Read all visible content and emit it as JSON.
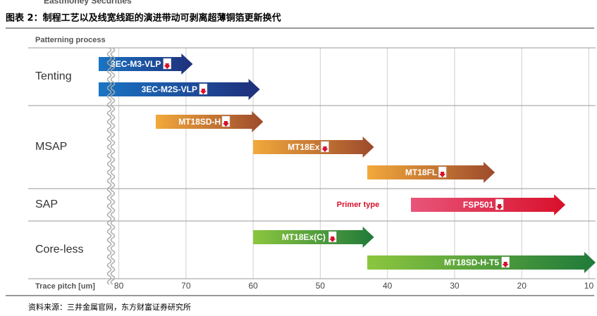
{
  "header": "Eastmoney Securities",
  "title": "图表 2：制程工艺以及线宽线距的演进带动可剥离超薄铜箔更新换代",
  "source": "资料来源：三井金属官网，东方财富证券研究所",
  "chart_data": {
    "type": "range",
    "y_title": "Patterning process",
    "x_title": "Trace pitch [um]",
    "xlim": [
      83,
      9
    ],
    "xticks": [
      80,
      70,
      60,
      50,
      40,
      30,
      20,
      10
    ],
    "grid": true,
    "annotation": "Primer type",
    "groups": [
      {
        "name": "Tenting",
        "colors": [
          "#1a74c4",
          "#1f2f7a"
        ],
        "bars": [
          {
            "label": "3EC-M3-VLP",
            "values": [
              83,
              69
            ]
          },
          {
            "label": "3EC-M2S-VLP",
            "values": [
              83,
              59
            ]
          }
        ]
      },
      {
        "name": "MSAP",
        "colors": [
          "#f2a93b",
          "#9c4a2c"
        ],
        "bars": [
          {
            "label": "MT18SD-H",
            "values": [
              74.5,
              58.5
            ]
          },
          {
            "label": "MT18Ex",
            "values": [
              60,
              42
            ]
          },
          {
            "label": "MT18FL",
            "values": [
              43,
              24
            ]
          }
        ]
      },
      {
        "name": "SAP",
        "colors": [
          "#e8557a",
          "#d8102a"
        ],
        "bars": [
          {
            "label": "FSP501",
            "values": [
              36.5,
              13.5
            ]
          }
        ]
      },
      {
        "name": "Core-less",
        "colors": [
          "#8cc63f",
          "#1f7a3a"
        ],
        "bars": [
          {
            "label": "MT18Ex(C)",
            "values": [
              60,
              42
            ]
          },
          {
            "label": "MT18SD-H-T5",
            "values": [
              43,
              9
            ]
          }
        ]
      }
    ]
  }
}
